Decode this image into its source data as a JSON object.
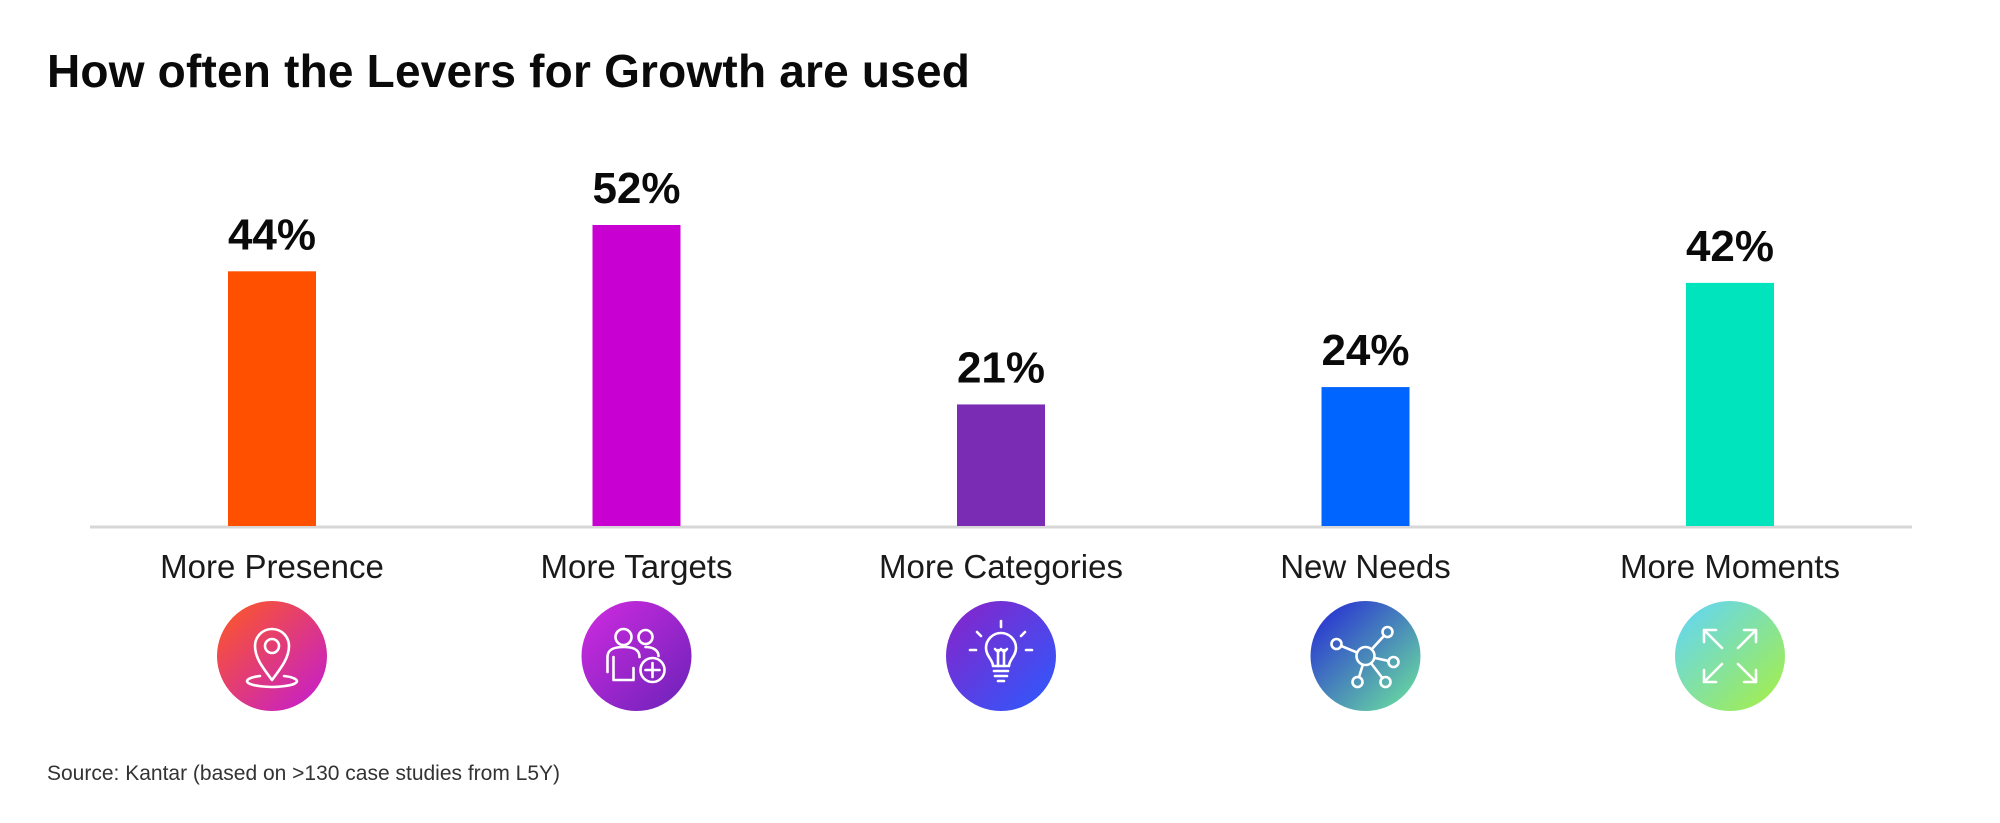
{
  "chart_data": {
    "type": "bar",
    "title": "How often the Levers for Growth are used",
    "categories": [
      "More Presence",
      "More Targets",
      "More Categories",
      "New Needs",
      "More Moments"
    ],
    "values": [
      44,
      52,
      21,
      24,
      42
    ],
    "value_labels": [
      "44%",
      "52%",
      "21%",
      "24%",
      "42%"
    ],
    "unit": "%",
    "ylim": [
      0,
      60
    ],
    "grid": false,
    "legend": "none",
    "xlabel": "",
    "ylabel": "",
    "bar_colors": [
      "#FF5000",
      "#C800D2",
      "#7B2CB5",
      "#0064FF",
      "#00E4BE"
    ],
    "icons": [
      {
        "name": "location-pin-icon",
        "gradient": [
          "#FF5A1F",
          "#C21BD6"
        ]
      },
      {
        "name": "people-add-icon",
        "gradient": [
          "#D12BE0",
          "#6A22B8"
        ]
      },
      {
        "name": "lightbulb-icon",
        "gradient": [
          "#8A22C8",
          "#2A5BFF"
        ]
      },
      {
        "name": "network-icon",
        "gradient": [
          "#2222D8",
          "#6EEA9C"
        ]
      },
      {
        "name": "expand-arrows-icon",
        "gradient": [
          "#5FD4FF",
          "#A8F040"
        ]
      }
    ]
  },
  "source": "Source: Kantar (based on >130 case studies from L5Y)"
}
